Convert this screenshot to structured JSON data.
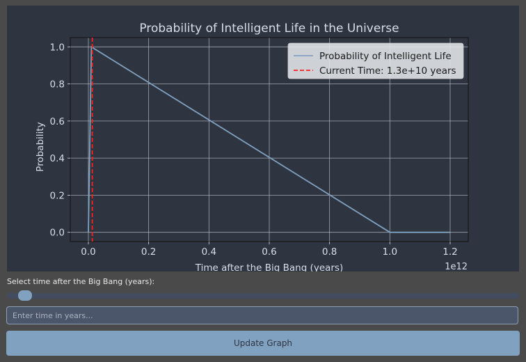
{
  "chart_data": {
    "type": "line",
    "title": "Probability of Intelligent Life in the Universe",
    "xlabel": "Time after the Big Bang (years)",
    "ylabel": "Probability",
    "x_offset_label": "1e12",
    "xlim": [
      -0.06,
      1.26
    ],
    "ylim": [
      -0.05,
      1.05
    ],
    "x_ticks": [
      0.0,
      0.2,
      0.4,
      0.6,
      0.8,
      1.0,
      1.2
    ],
    "x_tick_labels": [
      "0.0",
      "0.2",
      "0.4",
      "0.6",
      "0.8",
      "1.0",
      "1.2"
    ],
    "y_ticks": [
      0.0,
      0.2,
      0.4,
      0.6,
      0.8,
      1.0
    ],
    "y_tick_labels": [
      "0.0",
      "0.2",
      "0.4",
      "0.6",
      "0.8",
      "1.0"
    ],
    "grid": true,
    "legend_position": "top-right",
    "series": [
      {
        "name": "Probability of Intelligent Life",
        "color": "#81a1c1",
        "style": "solid",
        "x": [
          0.0,
          0.01,
          1.0,
          1.2
        ],
        "y": [
          0.0,
          1.0,
          0.0,
          0.0
        ]
      }
    ],
    "vlines": [
      {
        "name": "Current Time: 1.3e+10 years",
        "color": "#ff2020",
        "style": "dashed",
        "x": 0.013
      }
    ]
  },
  "controls": {
    "slider_label": "Select time after the Big Bang (years):",
    "slider_value": 13000000000.0,
    "slider_min": 0,
    "slider_max": 1200000000000.0,
    "input_placeholder": "Enter time in years...",
    "input_value": "",
    "button_label": "Update Graph"
  },
  "colors": {
    "plot_background": "#2e3440",
    "panel_background": "#4a4a4a",
    "accent": "#81a1c1",
    "grid": "#c8ccd4",
    "text": "#d8dee9"
  }
}
